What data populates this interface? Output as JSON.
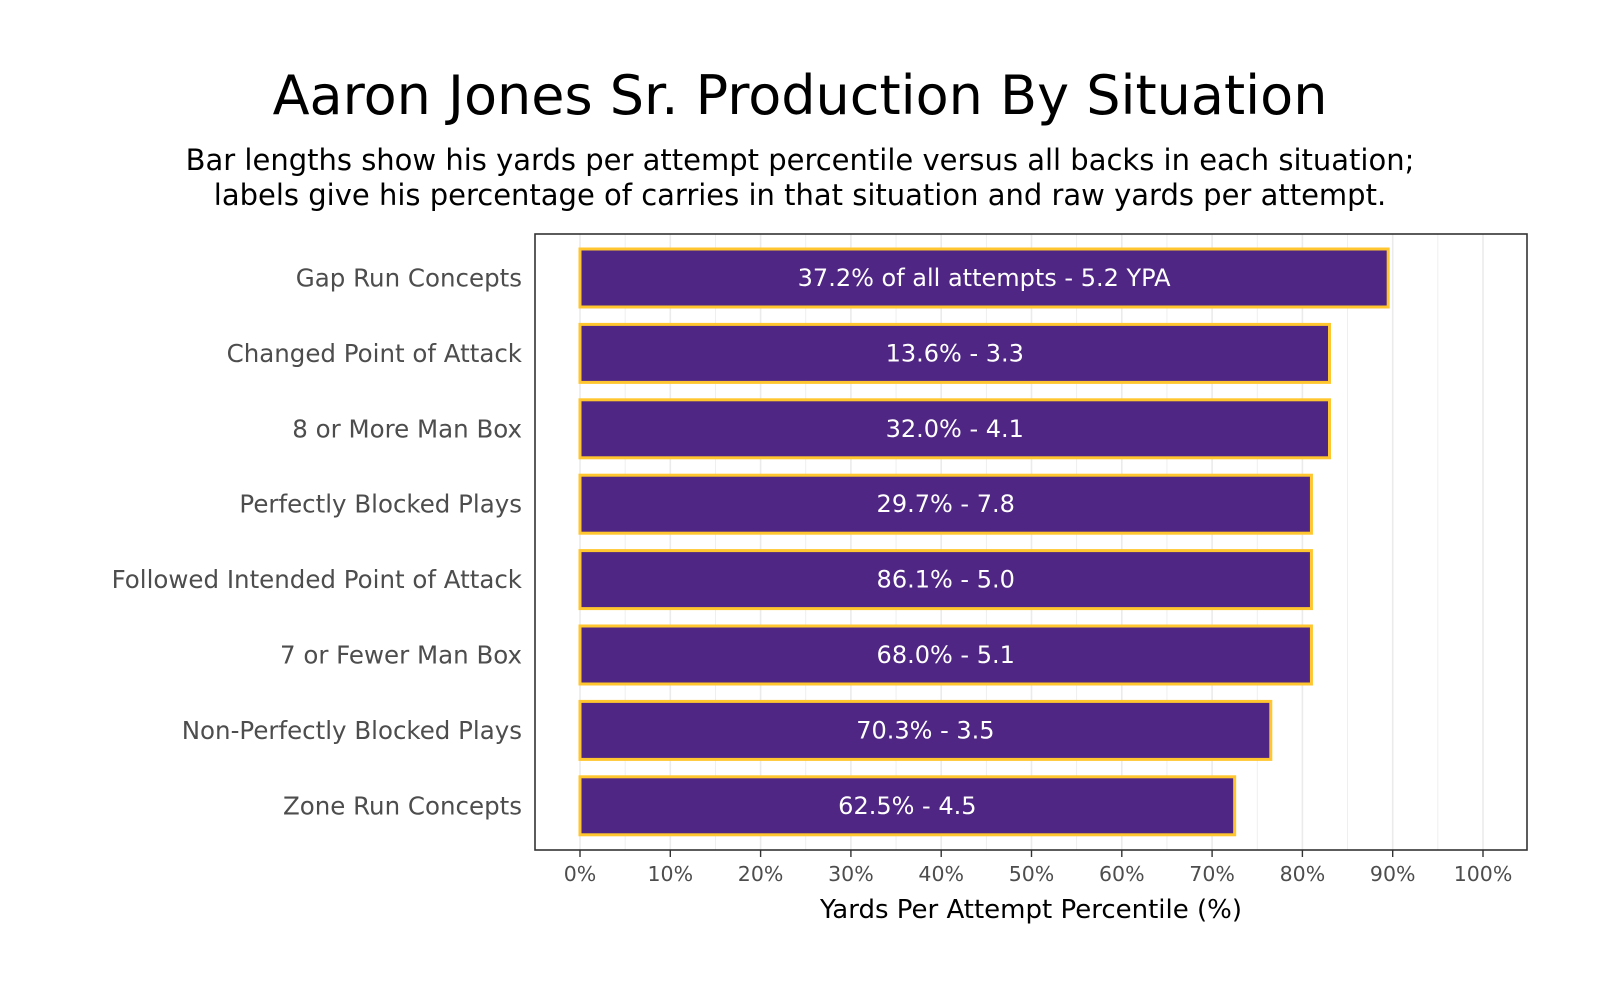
{
  "chart_data": {
    "type": "bar",
    "orientation": "horizontal",
    "title": "Aaron Jones Sr. Production By Situation",
    "subtitle_lines": [
      "Bar lengths show his yards per attempt percentile versus all backs in each situation;",
      "labels give his percentage of carries in that situation and raw yards per attempt."
    ],
    "xlabel": "Yards Per Attempt Percentile (%)",
    "ylabel": "",
    "xlim": [
      0,
      100
    ],
    "x_ticks": [
      0,
      10,
      20,
      30,
      40,
      50,
      60,
      70,
      80,
      90,
      100
    ],
    "x_tick_labels": [
      "0%",
      "10%",
      "20%",
      "30%",
      "40%",
      "50%",
      "60%",
      "70%",
      "80%",
      "90%",
      "100%"
    ],
    "grid": true,
    "categories": [
      "Gap Run Concepts",
      "Changed Point of Attack",
      "8 or More Man Box",
      "Perfectly Blocked Plays",
      "Followed Intended Point of Attack",
      "7 or Fewer Man Box",
      "Non-Perfectly Blocked Plays",
      "Zone Run Concepts"
    ],
    "values": [
      89.5,
      83,
      83,
      81,
      81,
      81,
      76.5,
      72.5
    ],
    "bar_labels": [
      "37.2% of all attempts - 5.2 YPA",
      "13.6% - 3.3",
      "32.0% - 4.1",
      "29.7% - 7.8",
      "86.1% - 5.0",
      "68.0% - 5.1",
      "70.3% - 3.5",
      "62.5% - 4.5"
    ],
    "bar_fill": "#4f2683",
    "bar_outline": "#ffc62f",
    "grid_color": "#ebebeb",
    "panel_border": "#333333"
  }
}
